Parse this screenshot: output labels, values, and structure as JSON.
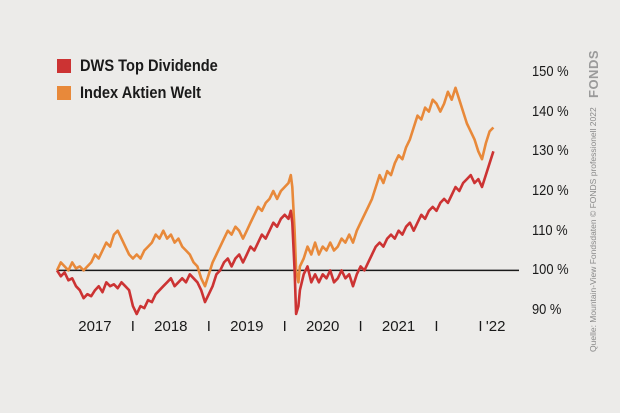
{
  "legend": [
    {
      "label": "DWS Top Dividende",
      "color": "#cc3333"
    },
    {
      "label": "Index Aktien Welt",
      "color": "#e8893a"
    }
  ],
  "chart_data": {
    "type": "line",
    "ylim": [
      88,
      153
    ],
    "baseline": 100,
    "yticks": [
      {
        "value": 150,
        "label": "150 %"
      },
      {
        "value": 140,
        "label": "140 %"
      },
      {
        "value": 130,
        "label": "130 %"
      },
      {
        "value": 120,
        "label": "120 %"
      },
      {
        "value": 110,
        "label": "110 %"
      },
      {
        "value": 100,
        "label": "100 %"
      },
      {
        "value": 90,
        "label": "90 %"
      }
    ],
    "xlim": [
      2016.0,
      2022.1
    ],
    "xlabels": [
      {
        "x": 2016.5,
        "label": "2017"
      },
      {
        "x": 2017.5,
        "label": "2018"
      },
      {
        "x": 2018.5,
        "label": "2019"
      },
      {
        "x": 2019.5,
        "label": "2020"
      },
      {
        "x": 2020.5,
        "label": "2021"
      },
      {
        "x": 2021.78,
        "label": "'22"
      }
    ],
    "separators": [
      {
        "x": 2017.0,
        "label": "I"
      },
      {
        "x": 2018.0,
        "label": "I"
      },
      {
        "x": 2019.0,
        "label": "I"
      },
      {
        "x": 2020.0,
        "label": "I"
      },
      {
        "x": 2021.0,
        "label": "I"
      },
      {
        "x": 2021.58,
        "label": "I"
      }
    ],
    "series": [
      {
        "name": "DWS Top Dividende",
        "color": "#cc3333",
        "points": [
          [
            2016.0,
            100
          ],
          [
            2016.05,
            98.5
          ],
          [
            2016.1,
            99.5
          ],
          [
            2016.15,
            97.5
          ],
          [
            2016.2,
            98
          ],
          [
            2016.25,
            96
          ],
          [
            2016.3,
            95
          ],
          [
            2016.35,
            93
          ],
          [
            2016.4,
            94
          ],
          [
            2016.45,
            93.5
          ],
          [
            2016.5,
            95
          ],
          [
            2016.55,
            96
          ],
          [
            2016.6,
            94.5
          ],
          [
            2016.65,
            97
          ],
          [
            2016.7,
            96
          ],
          [
            2016.75,
            96.5
          ],
          [
            2016.8,
            95.5
          ],
          [
            2016.85,
            97
          ],
          [
            2016.9,
            96
          ],
          [
            2016.95,
            95
          ],
          [
            2017.0,
            91
          ],
          [
            2017.05,
            89
          ],
          [
            2017.1,
            91
          ],
          [
            2017.15,
            90.5
          ],
          [
            2017.2,
            92.5
          ],
          [
            2017.25,
            92
          ],
          [
            2017.3,
            94
          ],
          [
            2017.35,
            95
          ],
          [
            2017.4,
            96
          ],
          [
            2017.45,
            97
          ],
          [
            2017.5,
            98
          ],
          [
            2017.55,
            96
          ],
          [
            2017.6,
            97
          ],
          [
            2017.65,
            98
          ],
          [
            2017.7,
            97
          ],
          [
            2017.75,
            99
          ],
          [
            2017.8,
            98
          ],
          [
            2017.85,
            97
          ],
          [
            2017.9,
            95
          ],
          [
            2017.95,
            92
          ],
          [
            2018.0,
            94
          ],
          [
            2018.05,
            96
          ],
          [
            2018.1,
            99
          ],
          [
            2018.15,
            100
          ],
          [
            2018.2,
            102
          ],
          [
            2018.25,
            103
          ],
          [
            2018.3,
            101
          ],
          [
            2018.35,
            103
          ],
          [
            2018.4,
            104
          ],
          [
            2018.45,
            102
          ],
          [
            2018.5,
            104
          ],
          [
            2018.55,
            106
          ],
          [
            2018.6,
            105
          ],
          [
            2018.65,
            107
          ],
          [
            2018.7,
            109
          ],
          [
            2018.75,
            108
          ],
          [
            2018.8,
            110
          ],
          [
            2018.85,
            112
          ],
          [
            2018.9,
            111
          ],
          [
            2018.95,
            113
          ],
          [
            2019.0,
            114
          ],
          [
            2019.05,
            113
          ],
          [
            2019.08,
            115
          ],
          [
            2019.1,
            112
          ],
          [
            2019.13,
            100
          ],
          [
            2019.15,
            89
          ],
          [
            2019.18,
            91
          ],
          [
            2019.2,
            95
          ],
          [
            2019.25,
            99
          ],
          [
            2019.3,
            101
          ],
          [
            2019.35,
            97
          ],
          [
            2019.4,
            99
          ],
          [
            2019.45,
            97
          ],
          [
            2019.5,
            99
          ],
          [
            2019.55,
            98
          ],
          [
            2019.6,
            100
          ],
          [
            2019.65,
            97
          ],
          [
            2019.7,
            98
          ],
          [
            2019.75,
            100
          ],
          [
            2019.8,
            98
          ],
          [
            2019.85,
            99
          ],
          [
            2019.9,
            96
          ],
          [
            2019.95,
            99
          ],
          [
            2020.0,
            101
          ],
          [
            2020.05,
            100
          ],
          [
            2020.1,
            102
          ],
          [
            2020.15,
            104
          ],
          [
            2020.2,
            106
          ],
          [
            2020.25,
            107
          ],
          [
            2020.3,
            106
          ],
          [
            2020.35,
            108
          ],
          [
            2020.4,
            109
          ],
          [
            2020.45,
            108
          ],
          [
            2020.5,
            110
          ],
          [
            2020.55,
            109
          ],
          [
            2020.6,
            111
          ],
          [
            2020.65,
            112
          ],
          [
            2020.7,
            110
          ],
          [
            2020.75,
            112
          ],
          [
            2020.8,
            114
          ],
          [
            2020.85,
            113
          ],
          [
            2020.9,
            115
          ],
          [
            2020.95,
            116
          ],
          [
            2021.0,
            115
          ],
          [
            2021.05,
            117
          ],
          [
            2021.1,
            118
          ],
          [
            2021.15,
            117
          ],
          [
            2021.2,
            119
          ],
          [
            2021.25,
            121
          ],
          [
            2021.3,
            120
          ],
          [
            2021.35,
            122
          ],
          [
            2021.4,
            123
          ],
          [
            2021.45,
            124
          ],
          [
            2021.5,
            122
          ],
          [
            2021.55,
            123
          ],
          [
            2021.6,
            121
          ],
          [
            2021.65,
            124
          ],
          [
            2021.7,
            127
          ],
          [
            2021.75,
            130
          ]
        ]
      },
      {
        "name": "Index Aktien Welt",
        "color": "#e8893a",
        "points": [
          [
            2016.0,
            100
          ],
          [
            2016.05,
            102
          ],
          [
            2016.1,
            101
          ],
          [
            2016.15,
            100
          ],
          [
            2016.2,
            102
          ],
          [
            2016.25,
            100.5
          ],
          [
            2016.3,
            101
          ],
          [
            2016.35,
            100
          ],
          [
            2016.4,
            101
          ],
          [
            2016.45,
            102
          ],
          [
            2016.5,
            104
          ],
          [
            2016.55,
            103
          ],
          [
            2016.6,
            105
          ],
          [
            2016.65,
            107
          ],
          [
            2016.7,
            106
          ],
          [
            2016.75,
            109
          ],
          [
            2016.8,
            110
          ],
          [
            2016.85,
            108
          ],
          [
            2016.9,
            106
          ],
          [
            2016.95,
            104
          ],
          [
            2017.0,
            103
          ],
          [
            2017.05,
            104
          ],
          [
            2017.1,
            103
          ],
          [
            2017.15,
            105
          ],
          [
            2017.2,
            106
          ],
          [
            2017.25,
            107
          ],
          [
            2017.3,
            109
          ],
          [
            2017.35,
            108
          ],
          [
            2017.4,
            110
          ],
          [
            2017.45,
            108
          ],
          [
            2017.5,
            109
          ],
          [
            2017.55,
            107
          ],
          [
            2017.6,
            108
          ],
          [
            2017.65,
            106
          ],
          [
            2017.7,
            105
          ],
          [
            2017.75,
            104
          ],
          [
            2017.8,
            102
          ],
          [
            2017.85,
            101
          ],
          [
            2017.9,
            98
          ],
          [
            2017.95,
            96
          ],
          [
            2018.0,
            99
          ],
          [
            2018.05,
            102
          ],
          [
            2018.1,
            104
          ],
          [
            2018.15,
            106
          ],
          [
            2018.2,
            108
          ],
          [
            2018.25,
            110
          ],
          [
            2018.3,
            109
          ],
          [
            2018.35,
            111
          ],
          [
            2018.4,
            110
          ],
          [
            2018.45,
            108
          ],
          [
            2018.5,
            110
          ],
          [
            2018.55,
            112
          ],
          [
            2018.6,
            114
          ],
          [
            2018.65,
            116
          ],
          [
            2018.7,
            115
          ],
          [
            2018.75,
            117
          ],
          [
            2018.8,
            118
          ],
          [
            2018.85,
            120
          ],
          [
            2018.9,
            118
          ],
          [
            2018.95,
            120
          ],
          [
            2019.0,
            121
          ],
          [
            2019.05,
            122
          ],
          [
            2019.08,
            124
          ],
          [
            2019.1,
            121
          ],
          [
            2019.13,
            110
          ],
          [
            2019.15,
            100
          ],
          [
            2019.18,
            97
          ],
          [
            2019.2,
            101
          ],
          [
            2019.25,
            103
          ],
          [
            2019.3,
            106
          ],
          [
            2019.35,
            104
          ],
          [
            2019.4,
            107
          ],
          [
            2019.45,
            104
          ],
          [
            2019.5,
            106
          ],
          [
            2019.55,
            105
          ],
          [
            2019.6,
            107
          ],
          [
            2019.65,
            105
          ],
          [
            2019.7,
            106
          ],
          [
            2019.75,
            108
          ],
          [
            2019.8,
            107
          ],
          [
            2019.85,
            109
          ],
          [
            2019.9,
            107
          ],
          [
            2019.95,
            110
          ],
          [
            2020.0,
            112
          ],
          [
            2020.05,
            114
          ],
          [
            2020.1,
            116
          ],
          [
            2020.15,
            118
          ],
          [
            2020.2,
            121
          ],
          [
            2020.25,
            124
          ],
          [
            2020.3,
            122
          ],
          [
            2020.35,
            125
          ],
          [
            2020.4,
            124
          ],
          [
            2020.45,
            127
          ],
          [
            2020.5,
            129
          ],
          [
            2020.55,
            128
          ],
          [
            2020.6,
            131
          ],
          [
            2020.65,
            133
          ],
          [
            2020.7,
            136
          ],
          [
            2020.75,
            139
          ],
          [
            2020.8,
            138
          ],
          [
            2020.85,
            141
          ],
          [
            2020.9,
            140
          ],
          [
            2020.95,
            143
          ],
          [
            2021.0,
            142
          ],
          [
            2021.05,
            140
          ],
          [
            2021.1,
            142
          ],
          [
            2021.15,
            145
          ],
          [
            2021.2,
            143
          ],
          [
            2021.25,
            146
          ],
          [
            2021.3,
            143
          ],
          [
            2021.35,
            140
          ],
          [
            2021.4,
            137
          ],
          [
            2021.45,
            135
          ],
          [
            2021.5,
            133
          ],
          [
            2021.55,
            130
          ],
          [
            2021.6,
            128
          ],
          [
            2021.65,
            132
          ],
          [
            2021.7,
            135
          ],
          [
            2021.75,
            136
          ]
        ]
      }
    ]
  },
  "source_text": "Quelle: Mountain-View Fondsdaten  © FONDS professionell 2022",
  "logo_text": "FONDS"
}
